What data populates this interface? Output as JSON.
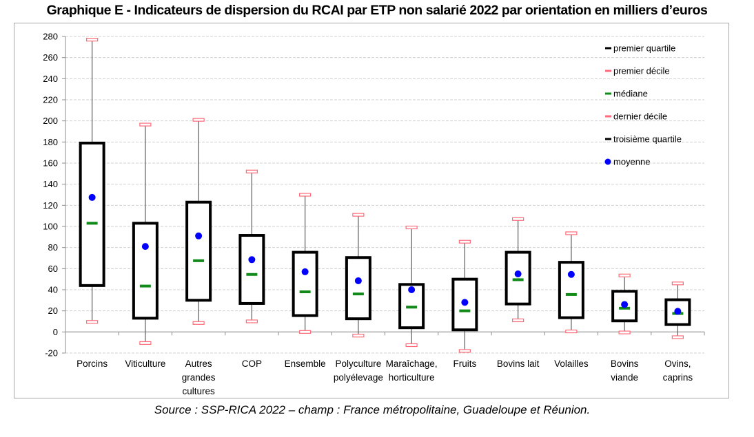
{
  "chart_data": {
    "type": "boxplot",
    "title": "Graphique E - Indicateurs de dispersion du RCAI par ETP non salarié 2022 par orientation en milliers d’euros",
    "source": "Source : SSP-RICA 2022 – champ : France métropolitaine, Guadeloupe et Réunion.",
    "xlabel": "",
    "ylabel": "",
    "ylim": [
      -20,
      280
    ],
    "y_ticks": [
      -20,
      0,
      20,
      40,
      60,
      80,
      100,
      120,
      140,
      160,
      180,
      200,
      220,
      240,
      260,
      280
    ],
    "grid": true,
    "legend_position": "top-right",
    "legend": [
      {
        "key": "q1",
        "label": "premier quartile",
        "color": "#000000",
        "marker": "dash"
      },
      {
        "key": "d1",
        "label": "premier décile",
        "color": "#ff6b7a",
        "marker": "dash"
      },
      {
        "key": "median",
        "label": "médiane",
        "color": "#118a1a",
        "marker": "dash"
      },
      {
        "key": "d9",
        "label": "dernier décile",
        "color": "#ff6b7a",
        "marker": "dash"
      },
      {
        "key": "q3",
        "label": "troisième quartile",
        "color": "#000000",
        "marker": "dash"
      },
      {
        "key": "mean",
        "label": "moyenne",
        "color": "#0000ff",
        "marker": "circle"
      }
    ],
    "categories": [
      {
        "label": [
          "Porcins"
        ],
        "d1": 9.5,
        "q1": 44,
        "median": 103,
        "q3": 179,
        "d9": 277,
        "mean": 127.5
      },
      {
        "label": [
          "Viticulture"
        ],
        "d1": -10.5,
        "q1": 13,
        "median": 43.5,
        "q3": 103,
        "d9": 196.5,
        "mean": 81
      },
      {
        "label": [
          "Autres",
          "grandes",
          "cultures"
        ],
        "d1": 8.5,
        "q1": 30,
        "median": 67.5,
        "q3": 123,
        "d9": 201,
        "mean": 91
      },
      {
        "label": [
          "COP"
        ],
        "d1": 10,
        "q1": 27,
        "median": 54.5,
        "q3": 91.5,
        "d9": 152,
        "mean": 68.5
      },
      {
        "label": [
          "Ensemble"
        ],
        "d1": 0,
        "q1": 15.5,
        "median": 38,
        "q3": 75.5,
        "d9": 130,
        "mean": 57
      },
      {
        "label": [
          "Polyculture",
          "polyélevage"
        ],
        "d1": -3.5,
        "q1": 12.5,
        "median": 36,
        "q3": 70.5,
        "d9": 111,
        "mean": 48.5
      },
      {
        "label": [
          "Maraîchage,",
          "horticulture"
        ],
        "d1": -12.5,
        "q1": 4,
        "median": 23.5,
        "q3": 45,
        "d9": 99,
        "mean": 40
      },
      {
        "label": [
          "Fruits"
        ],
        "d1": -18,
        "q1": 2,
        "median": 20,
        "q3": 50,
        "d9": 85.5,
        "mean": 28
      },
      {
        "label": [
          "Bovins lait"
        ],
        "d1": 11,
        "q1": 26.5,
        "median": 49.5,
        "q3": 75.5,
        "d9": 107,
        "mean": 55
      },
      {
        "label": [
          "Volailles"
        ],
        "d1": 0.5,
        "q1": 13.5,
        "median": 35.5,
        "q3": 66,
        "d9": 93.5,
        "mean": 54.5
      },
      {
        "label": [
          "Bovins",
          "viande"
        ],
        "d1": -0.5,
        "q1": 10.5,
        "median": 22.5,
        "q3": 38.5,
        "d9": 53.5,
        "mean": 26
      },
      {
        "label": [
          "Ovins,",
          "caprins"
        ],
        "d1": -5,
        "q1": 7,
        "median": 17.5,
        "q3": 30.5,
        "d9": 46,
        "mean": 19.5
      }
    ],
    "colors": {
      "box": "#000000",
      "whisker": "#595959",
      "decile": "#ff6b7a",
      "median": "#118a1a",
      "mean": "#0000ff",
      "grid": "#d0d0d0",
      "axis": "#8c8c8c"
    }
  }
}
